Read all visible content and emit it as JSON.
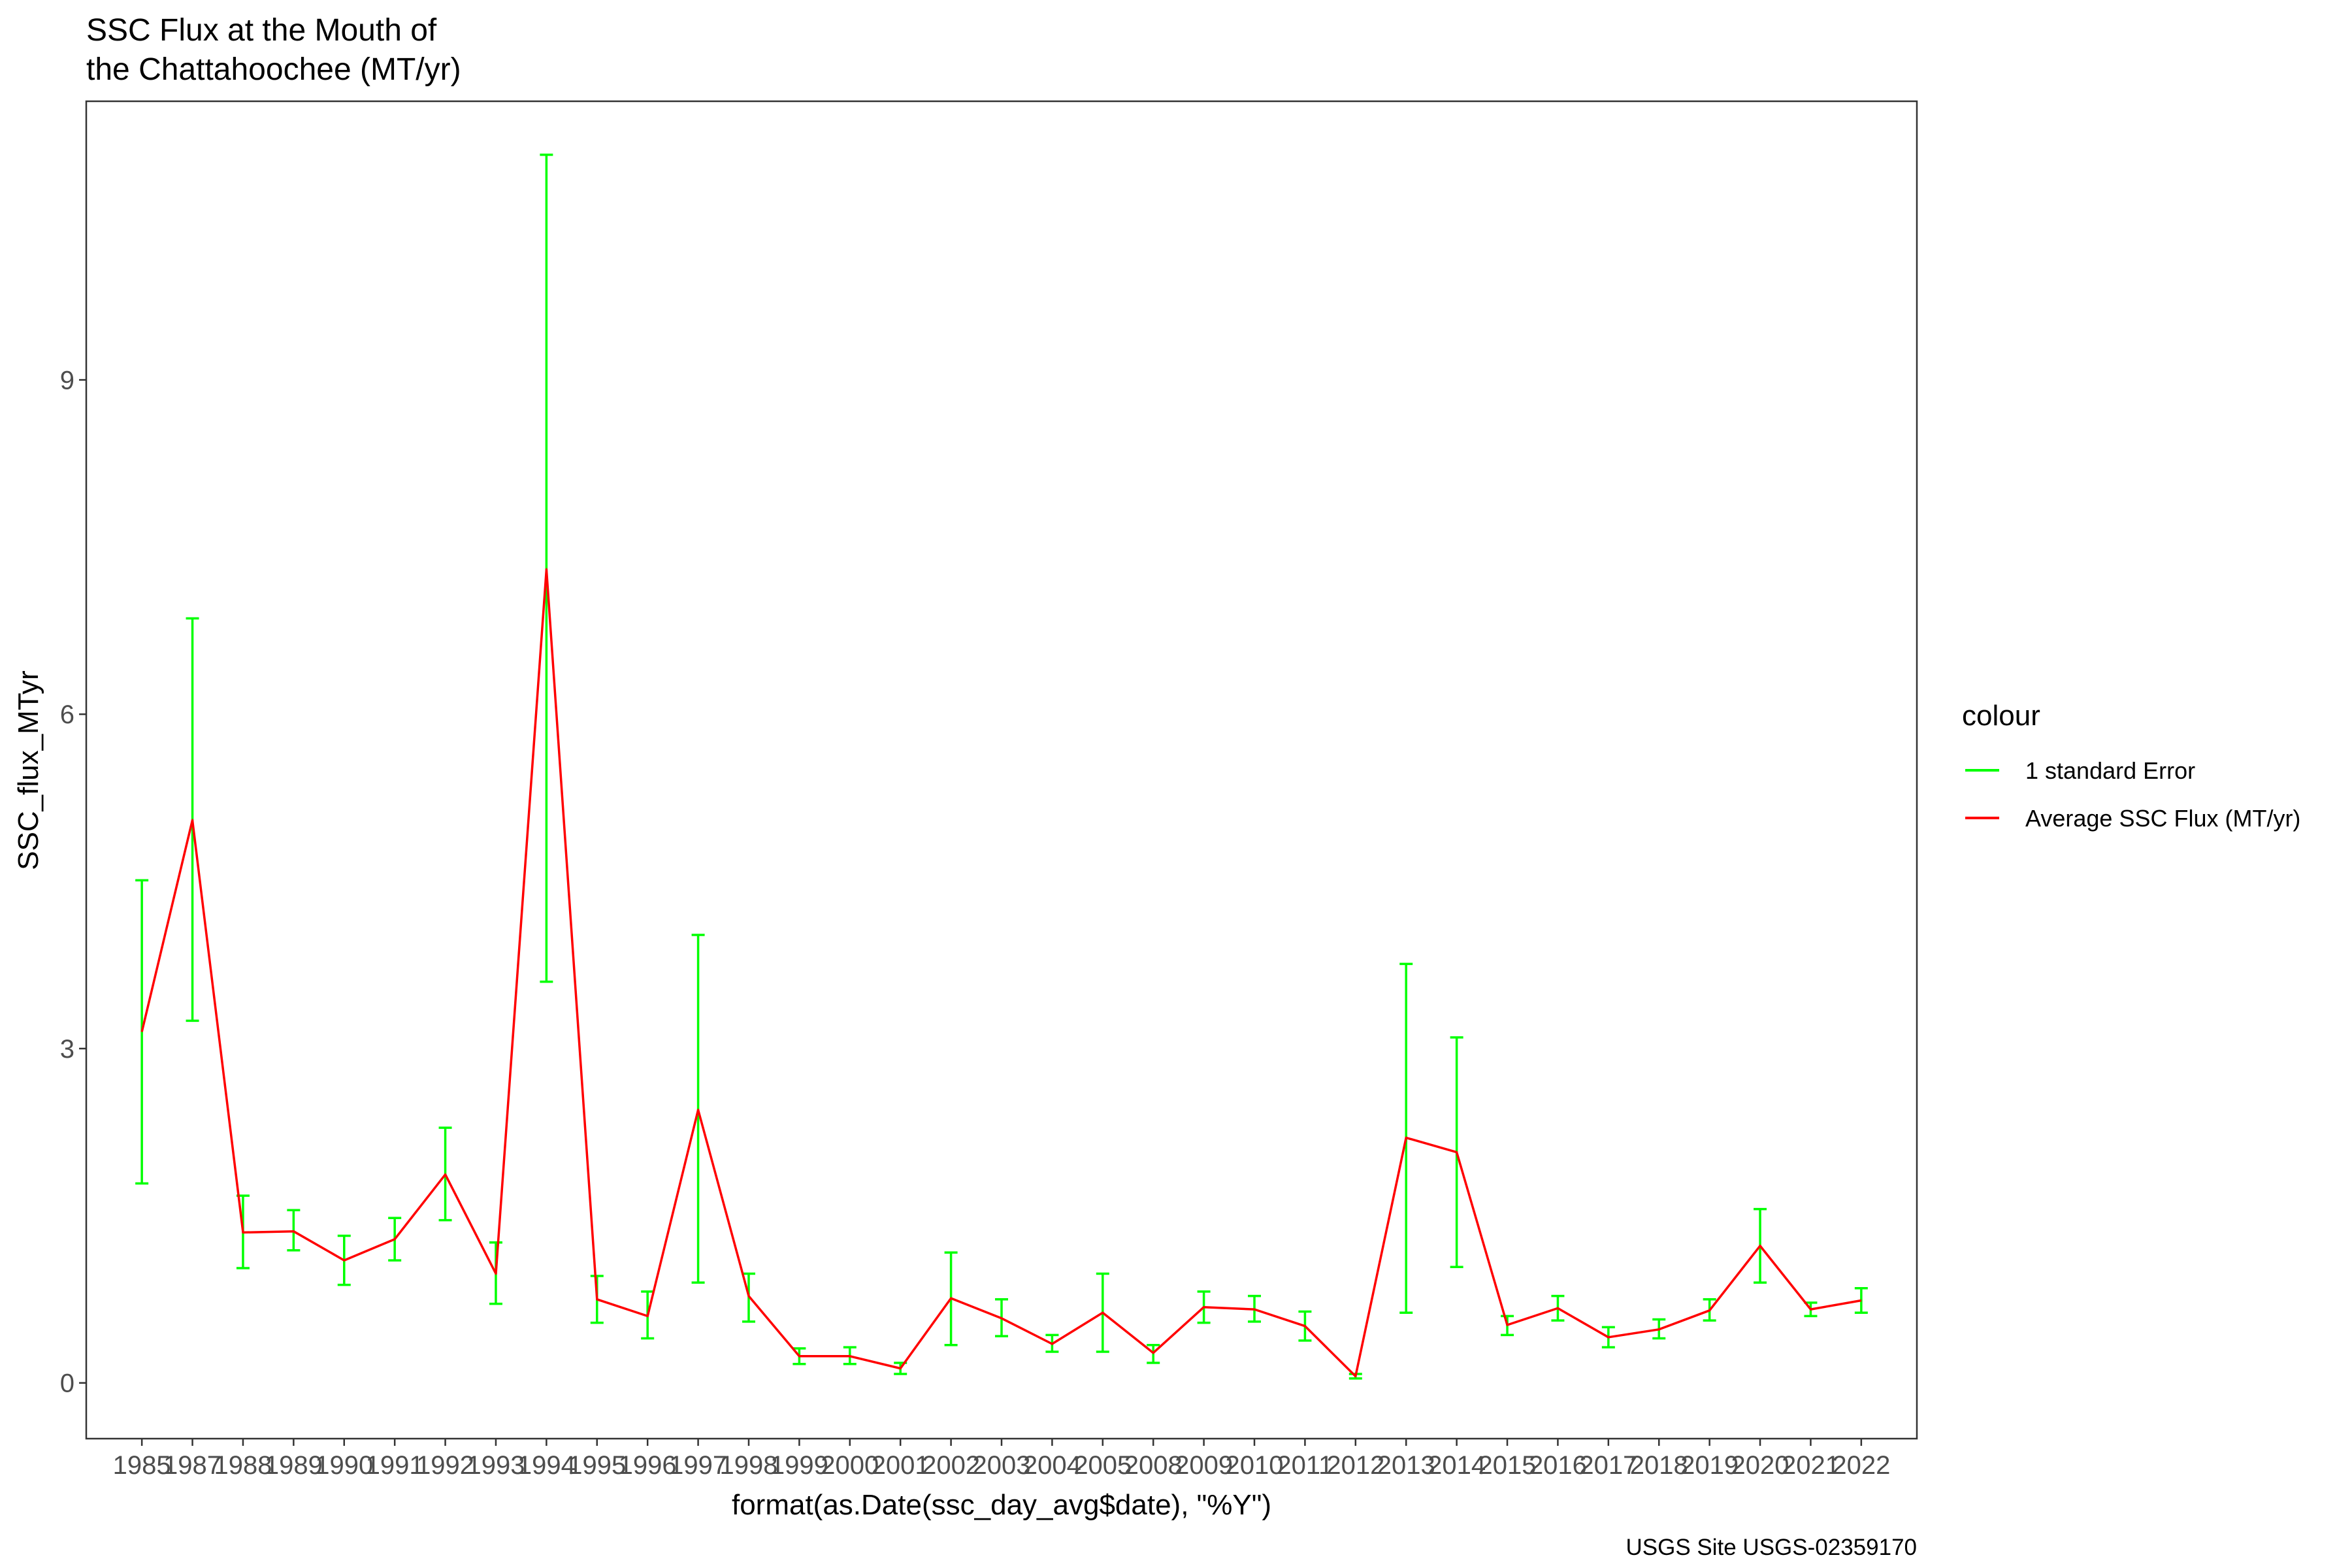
{
  "chart_data": {
    "type": "line",
    "title_lines": [
      "SSC Flux at the Mouth of",
      "the Chattahoochee (MT/yr)"
    ],
    "xlabel": "format(as.Date(ssc_day_avg$date), \"%Y\")",
    "ylabel": "SSC_flux_MTyr",
    "caption": "USGS Site USGS-02359170",
    "ylim": [
      -0.5,
      11.5
    ],
    "yticks": [
      0,
      3,
      6,
      9
    ],
    "ytick_labels": [
      "0",
      "3",
      "6",
      "9"
    ],
    "grid": false,
    "legend": {
      "title": "colour",
      "position": "right",
      "entries": [
        {
          "label": "1 standard Error",
          "color": "#00ff00"
        },
        {
          "label": "Average SSC Flux (MT/yr)",
          "color": "#ff0000"
        }
      ]
    },
    "categories": [
      "1985",
      "1987",
      "1988",
      "1989",
      "1990",
      "1991",
      "1992",
      "1993",
      "1994",
      "1995",
      "1996",
      "1997",
      "1998",
      "1999",
      "2000",
      "2001",
      "2002",
      "2003",
      "2004",
      "2005",
      "2008",
      "2009",
      "2010",
      "2011",
      "2012",
      "2013",
      "2014",
      "2015",
      "2016",
      "2017",
      "2018",
      "2019",
      "2020",
      "2021",
      "2022"
    ],
    "series": [
      {
        "name": "Average SSC Flux (MT/yr)",
        "color": "#ff0000",
        "values": [
          3.15,
          5.05,
          1.35,
          1.36,
          1.1,
          1.29,
          1.87,
          0.98,
          7.3,
          0.75,
          0.6,
          2.45,
          0.78,
          0.24,
          0.24,
          0.13,
          0.76,
          0.58,
          0.35,
          0.63,
          0.27,
          0.68,
          0.66,
          0.51,
          0.06,
          2.2,
          2.07,
          0.52,
          0.67,
          0.41,
          0.48,
          0.65,
          1.23,
          0.66,
          0.74
        ]
      }
    ],
    "error_bars": {
      "name": "1 standard Error",
      "color": "#00ff00",
      "lower": [
        1.79,
        3.25,
        1.03,
        1.19,
        0.88,
        1.1,
        1.46,
        0.71,
        3.6,
        0.54,
        0.4,
        0.9,
        0.55,
        0.17,
        0.17,
        0.08,
        0.34,
        0.42,
        0.28,
        0.28,
        0.18,
        0.54,
        0.55,
        0.38,
        0.04,
        0.63,
        1.04,
        0.43,
        0.56,
        0.32,
        0.4,
        0.56,
        0.9,
        0.6,
        0.63
      ],
      "upper": [
        4.51,
        6.86,
        1.68,
        1.55,
        1.32,
        1.48,
        2.29,
        1.26,
        11.02,
        0.96,
        0.82,
        4.02,
        0.98,
        0.31,
        0.32,
        0.18,
        1.17,
        0.75,
        0.43,
        0.98,
        0.34,
        0.82,
        0.78,
        0.64,
        0.08,
        3.76,
        3.1,
        0.6,
        0.78,
        0.5,
        0.57,
        0.75,
        1.56,
        0.72,
        0.85
      ]
    }
  }
}
